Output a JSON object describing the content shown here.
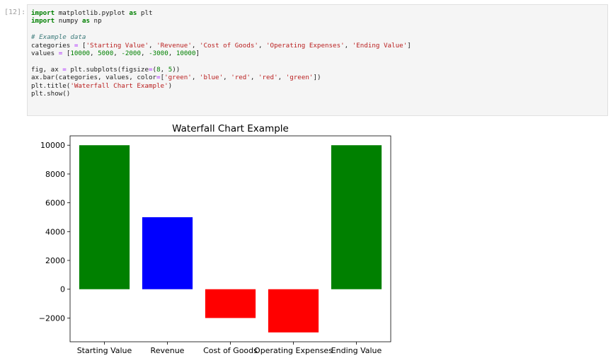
{
  "cell": {
    "prompt": "[12]:",
    "lines": [
      [
        {
          "t": "import",
          "c": "kw"
        },
        {
          "t": " matplotlib.pyplot ",
          "c": ""
        },
        {
          "t": "as",
          "c": "kw"
        },
        {
          "t": " plt",
          "c": ""
        }
      ],
      [
        {
          "t": "import",
          "c": "kw"
        },
        {
          "t": " numpy ",
          "c": ""
        },
        {
          "t": "as",
          "c": "kw"
        },
        {
          "t": " np",
          "c": ""
        }
      ],
      [],
      [
        {
          "t": "# Example data",
          "c": "cmt"
        }
      ],
      [
        {
          "t": "categories ",
          "c": ""
        },
        {
          "t": "=",
          "c": "op"
        },
        {
          "t": " [",
          "c": ""
        },
        {
          "t": "'Starting Value'",
          "c": "str"
        },
        {
          "t": ", ",
          "c": ""
        },
        {
          "t": "'Revenue'",
          "c": "str"
        },
        {
          "t": ", ",
          "c": ""
        },
        {
          "t": "'Cost of Goods'",
          "c": "str"
        },
        {
          "t": ", ",
          "c": ""
        },
        {
          "t": "'Operating Expenses'",
          "c": "str"
        },
        {
          "t": ", ",
          "c": ""
        },
        {
          "t": "'Ending Value'",
          "c": "str"
        },
        {
          "t": "]",
          "c": ""
        }
      ],
      [
        {
          "t": "values ",
          "c": ""
        },
        {
          "t": "=",
          "c": "op"
        },
        {
          "t": " [",
          "c": ""
        },
        {
          "t": "10000",
          "c": "num"
        },
        {
          "t": ", ",
          "c": ""
        },
        {
          "t": "5000",
          "c": "num"
        },
        {
          "t": ", ",
          "c": ""
        },
        {
          "t": "-2000",
          "c": "num"
        },
        {
          "t": ", ",
          "c": ""
        },
        {
          "t": "-3000",
          "c": "num"
        },
        {
          "t": ", ",
          "c": ""
        },
        {
          "t": "10000",
          "c": "num"
        },
        {
          "t": "]",
          "c": ""
        }
      ],
      [],
      [
        {
          "t": "fig, ax ",
          "c": ""
        },
        {
          "t": "=",
          "c": "op"
        },
        {
          "t": " plt.subplots(figsize",
          "c": ""
        },
        {
          "t": "=",
          "c": "op"
        },
        {
          "t": "(",
          "c": ""
        },
        {
          "t": "8",
          "c": "num"
        },
        {
          "t": ", ",
          "c": ""
        },
        {
          "t": "5",
          "c": "num"
        },
        {
          "t": "))",
          "c": ""
        }
      ],
      [
        {
          "t": "ax.bar(categories, values, color",
          "c": ""
        },
        {
          "t": "=",
          "c": "op"
        },
        {
          "t": "[",
          "c": ""
        },
        {
          "t": "'green'",
          "c": "str"
        },
        {
          "t": ", ",
          "c": ""
        },
        {
          "t": "'blue'",
          "c": "str"
        },
        {
          "t": ", ",
          "c": ""
        },
        {
          "t": "'red'",
          "c": "str"
        },
        {
          "t": ", ",
          "c": ""
        },
        {
          "t": "'red'",
          "c": "str"
        },
        {
          "t": ", ",
          "c": ""
        },
        {
          "t": "'green'",
          "c": "str"
        },
        {
          "t": "])",
          "c": ""
        }
      ],
      [
        {
          "t": "plt.title(",
          "c": ""
        },
        {
          "t": "'Waterfall Chart Example'",
          "c": "str"
        },
        {
          "t": ")",
          "c": ""
        }
      ],
      [
        {
          "t": "plt.show()",
          "c": ""
        }
      ]
    ]
  },
  "chart_data": {
    "type": "bar",
    "title": "Waterfall Chart Example",
    "categories": [
      "Starting Value",
      "Revenue",
      "Cost of Goods",
      "Operating Expenses",
      "Ending Value"
    ],
    "values": [
      10000,
      5000,
      -2000,
      -3000,
      10000
    ],
    "colors": [
      "#008000",
      "#0000ff",
      "#ff0000",
      "#ff0000",
      "#008000"
    ],
    "xlabel": "",
    "ylabel": "",
    "ylim": [
      -3650,
      10650
    ],
    "yticks": [
      -2000,
      0,
      2000,
      4000,
      6000,
      8000,
      10000
    ],
    "ytick_labels": [
      "−2000",
      "0",
      "2000",
      "4000",
      "6000",
      "8000",
      "10000"
    ],
    "grid": false
  }
}
